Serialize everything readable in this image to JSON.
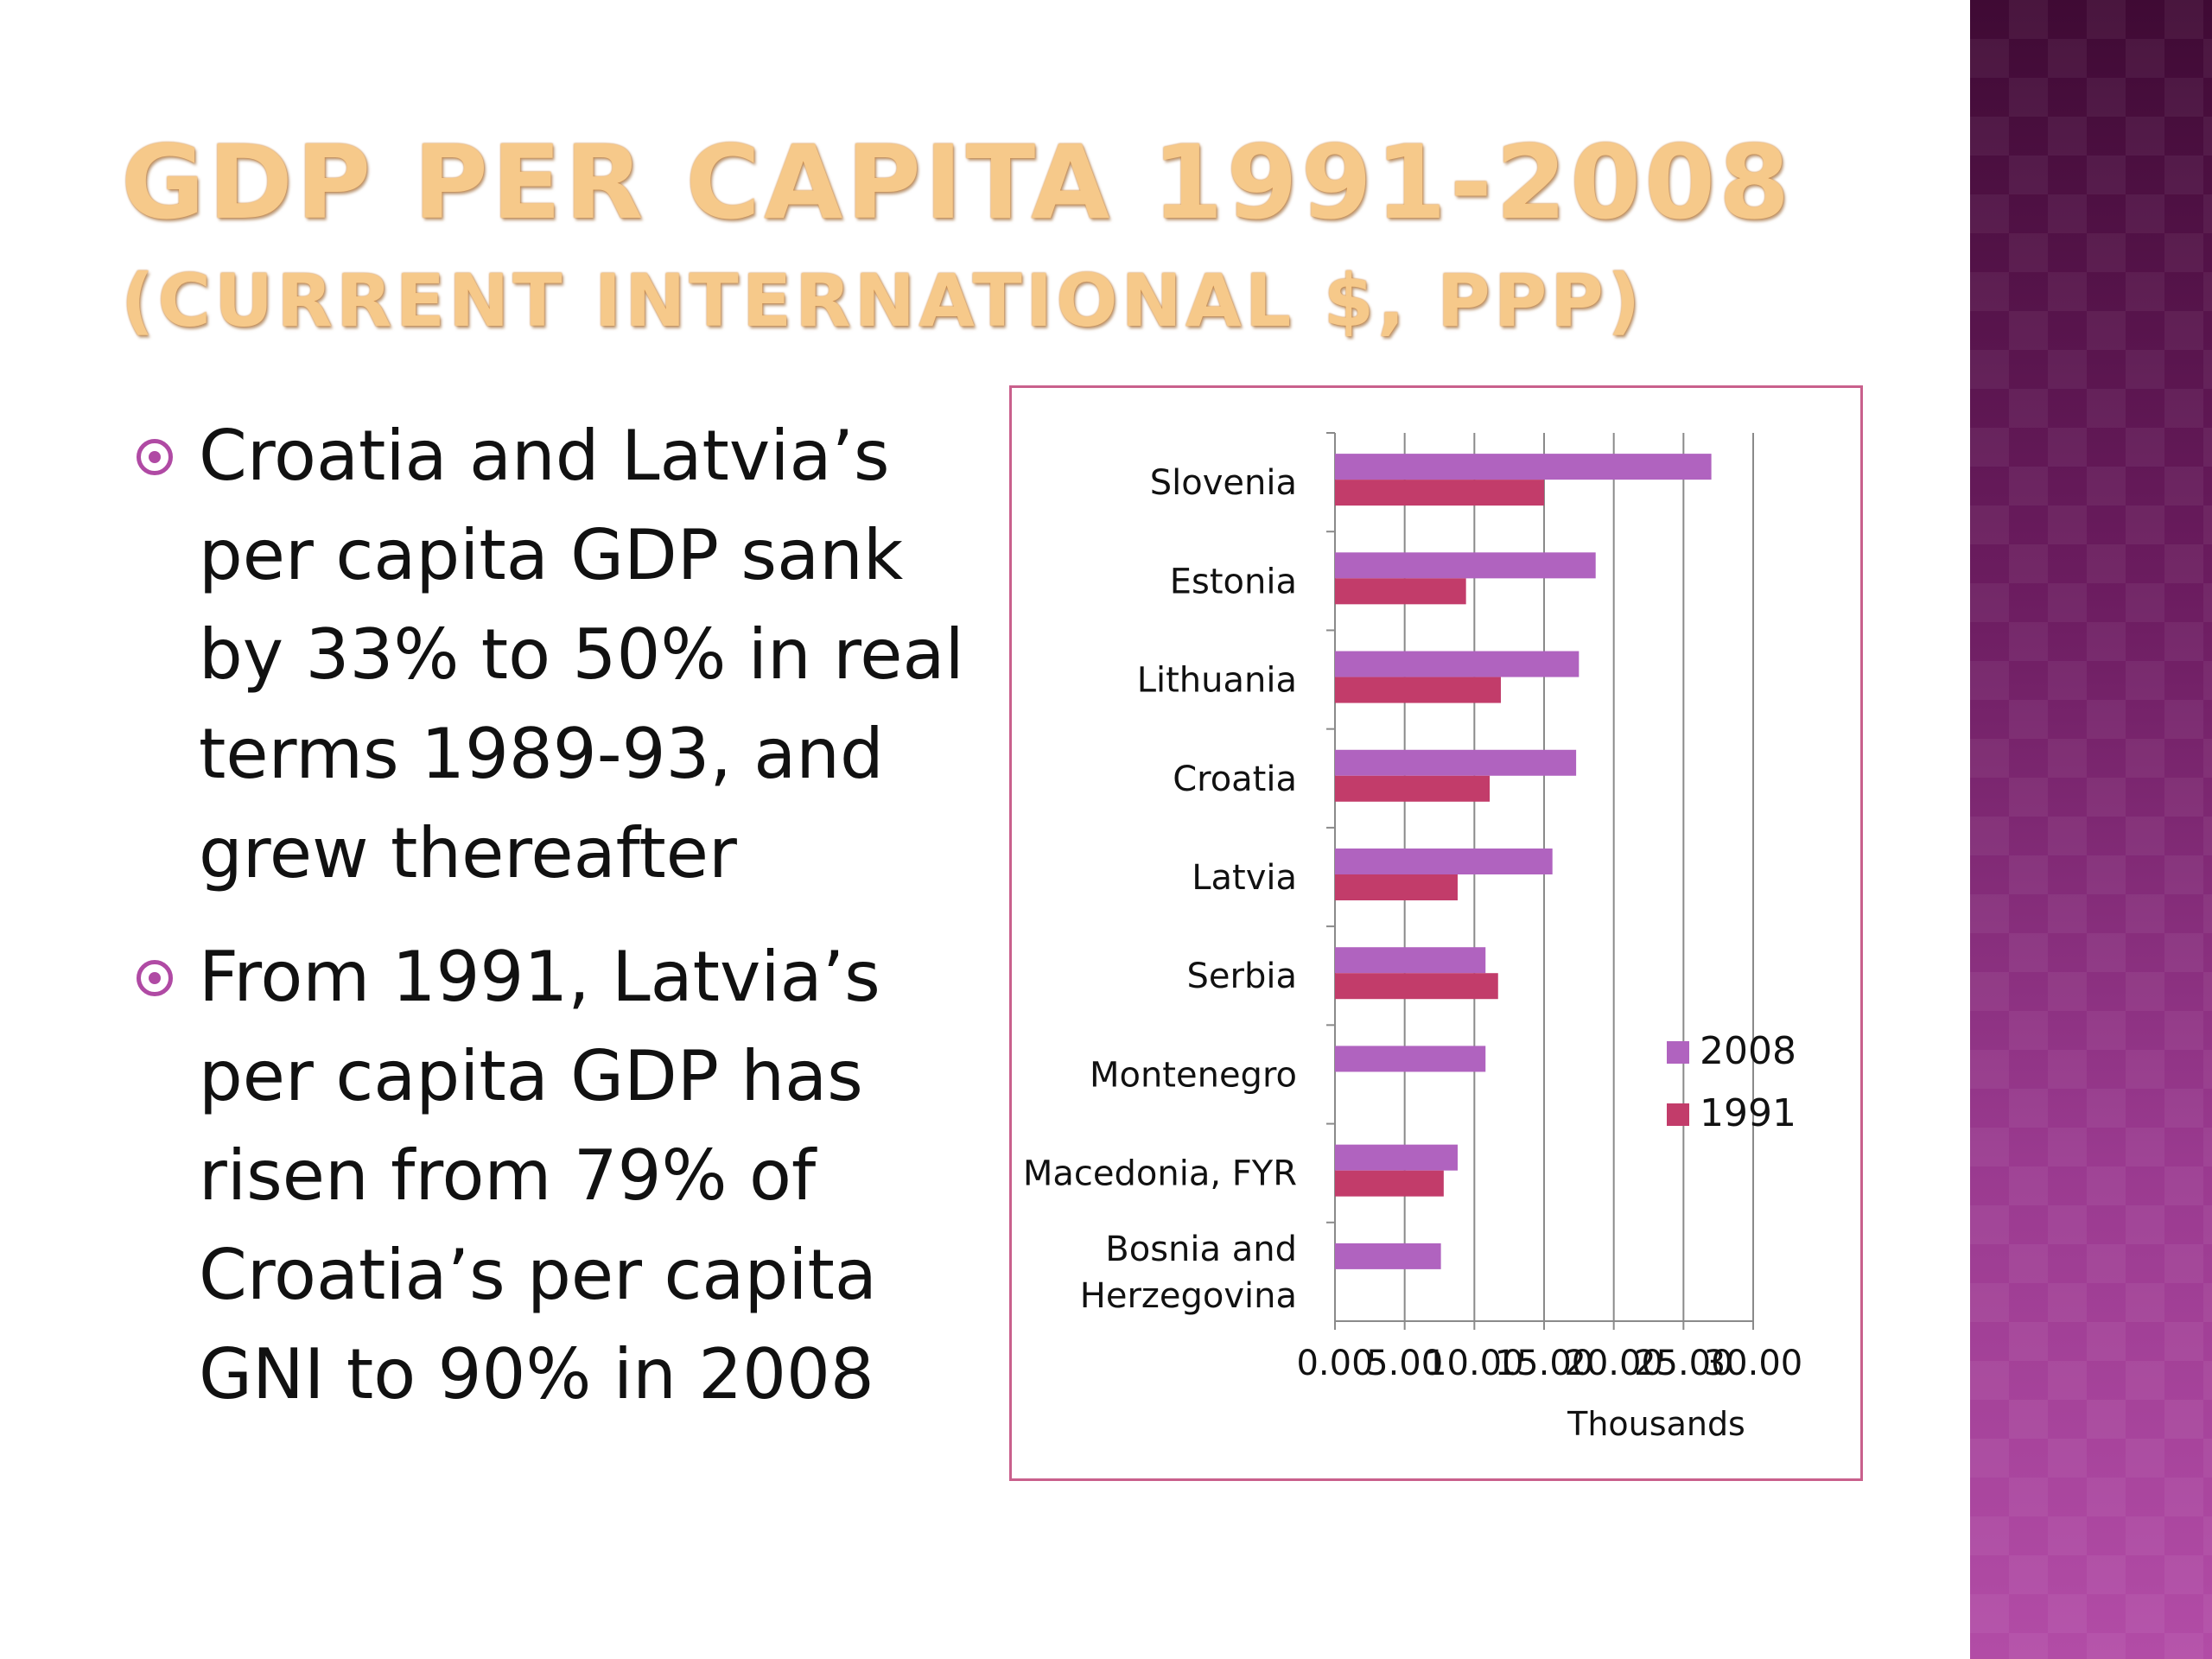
{
  "title": {
    "line1": "GDP per capita 1991-2008",
    "line2": "(Current international $, PPP)"
  },
  "bullets": [
    "Croatia and Latvia’s per capita GDP sank by 33% to 50% in real terms 1989-93, and grew thereafter",
    "From 1991, Latvia’s per capita GDP has risen from 79% of Croatia’s per capita GNI to 90% in 2008"
  ],
  "colors": {
    "title": "#f6c98a",
    "bullet": "#b04aa4",
    "series_2008": "#b063bf",
    "series_1991": "#c23c6a",
    "frame": "#c9608c"
  },
  "chart_data": {
    "type": "bar",
    "orientation": "horizontal",
    "categories": [
      "Slovenia",
      "Estonia",
      "Lithuania",
      "Croatia",
      "Latvia",
      "Serbia",
      "Montenegro",
      "Macedonia, FYR",
      "Bosnia and Herzegovina"
    ],
    "category_label_lines": [
      [
        "Slovenia"
      ],
      [
        "Estonia"
      ],
      [
        "Lithuania"
      ],
      [
        "Croatia"
      ],
      [
        "Latvia"
      ],
      [
        "Serbia"
      ],
      [
        "Montenegro"
      ],
      [
        "Macedonia, FYR"
      ],
      [
        "Bosnia and",
        "Herzegovina"
      ]
    ],
    "series": [
      {
        "name": "2008",
        "color": "#b063bf",
        "values": [
          27.0,
          18.7,
          17.5,
          17.3,
          15.6,
          10.8,
          10.8,
          8.8,
          7.6
        ]
      },
      {
        "name": "1991",
        "color": "#c23c6a",
        "values": [
          15.0,
          9.4,
          11.9,
          11.1,
          8.8,
          11.7,
          null,
          7.8,
          null
        ]
      }
    ],
    "xlim": [
      0,
      30
    ],
    "xticks": [
      "0.00",
      "5.00",
      "10.00",
      "15.00",
      "20.00",
      "25.00",
      "30.00"
    ],
    "xlabel": "Thousands",
    "grid": true,
    "legend": "right"
  }
}
